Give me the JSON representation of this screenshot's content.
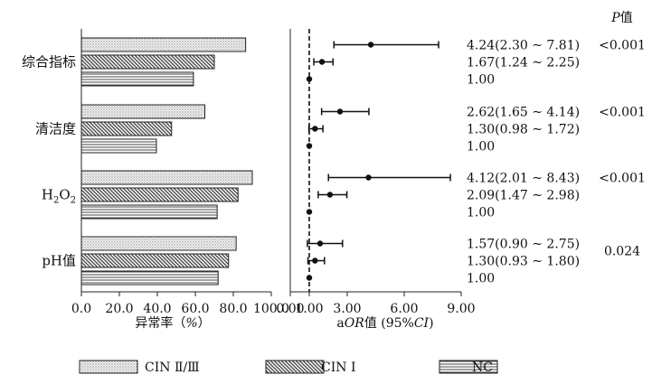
{
  "chart_data": {
    "type": "bar",
    "categories": [
      "综合指标",
      "清洁度",
      "H2O2",
      "pH值"
    ],
    "series": [
      {
        "name": "CIN Ⅱ/Ⅲ",
        "values": [
          86.5,
          65.0,
          90.0,
          81.5
        ]
      },
      {
        "name": "CIN Ⅰ",
        "values": [
          70.0,
          47.5,
          82.5,
          77.5
        ]
      },
      {
        "name": "NC",
        "values": [
          59.0,
          39.5,
          71.5,
          72.0
        ]
      }
    ],
    "xlabel_prefix": "异常率（",
    "xlabel_unit": "%",
    "xlabel_suffix": "）",
    "xlim": [
      0,
      100
    ],
    "xticks": [
      "0.0",
      "20.0",
      "40.0",
      "60.0",
      "80.0",
      "100.0"
    ],
    "forest": {
      "xlabel_a": "a",
      "xlabel_or": "OR",
      "xlabel_mid": "值 (95%",
      "xlabel_ci": "CI",
      "xlabel_end": ")",
      "xlim": [
        0,
        9
      ],
      "xticks": [
        "0.00",
        "1.00",
        "3.00",
        "6.00",
        "9.00"
      ],
      "reference": 1.0,
      "estimates": [
        {
          "or": 4.24,
          "lo": 2.3,
          "hi": 7.81,
          "label": "4.24(2.30 ~ 7.81)"
        },
        {
          "or": 1.67,
          "lo": 1.24,
          "hi": 2.25,
          "label": "1.67(1.24 ~ 2.25)"
        },
        {
          "or": 1.0,
          "lo": 1.0,
          "hi": 1.0,
          "label": "1.00"
        },
        {
          "or": 2.62,
          "lo": 1.65,
          "hi": 4.14,
          "label": "2.62(1.65 ~ 4.14)"
        },
        {
          "or": 1.3,
          "lo": 0.98,
          "hi": 1.72,
          "label": "1.30(0.98 ~ 1.72)"
        },
        {
          "or": 1.0,
          "lo": 1.0,
          "hi": 1.0,
          "label": "1.00"
        },
        {
          "or": 4.12,
          "lo": 2.01,
          "hi": 8.43,
          "label": "4.12(2.01 ~ 8.43)"
        },
        {
          "or": 2.09,
          "lo": 1.47,
          "hi": 2.98,
          "label": "2.09(1.47 ~ 2.98)"
        },
        {
          "or": 1.0,
          "lo": 1.0,
          "hi": 1.0,
          "label": "1.00"
        },
        {
          "or": 1.57,
          "lo": 0.9,
          "hi": 2.75,
          "label": "1.57(0.90 ~ 2.75)"
        },
        {
          "or": 1.3,
          "lo": 0.93,
          "hi": 1.8,
          "label": "1.30(0.93 ~ 1.80)"
        },
        {
          "or": 1.0,
          "lo": 1.0,
          "hi": 1.0,
          "label": "1.00"
        }
      ]
    },
    "p_header_p": "P",
    "p_header_rest": "值",
    "p_values": [
      "<0.001",
      "<0.001",
      "<0.001",
      "0.024"
    ],
    "legend": [
      "CIN Ⅱ/Ⅲ",
      "CIN Ⅰ",
      "NC"
    ],
    "legend_position": "bottom",
    "colors": {
      "bar_stroke": "#222222",
      "line": "#111111"
    }
  }
}
